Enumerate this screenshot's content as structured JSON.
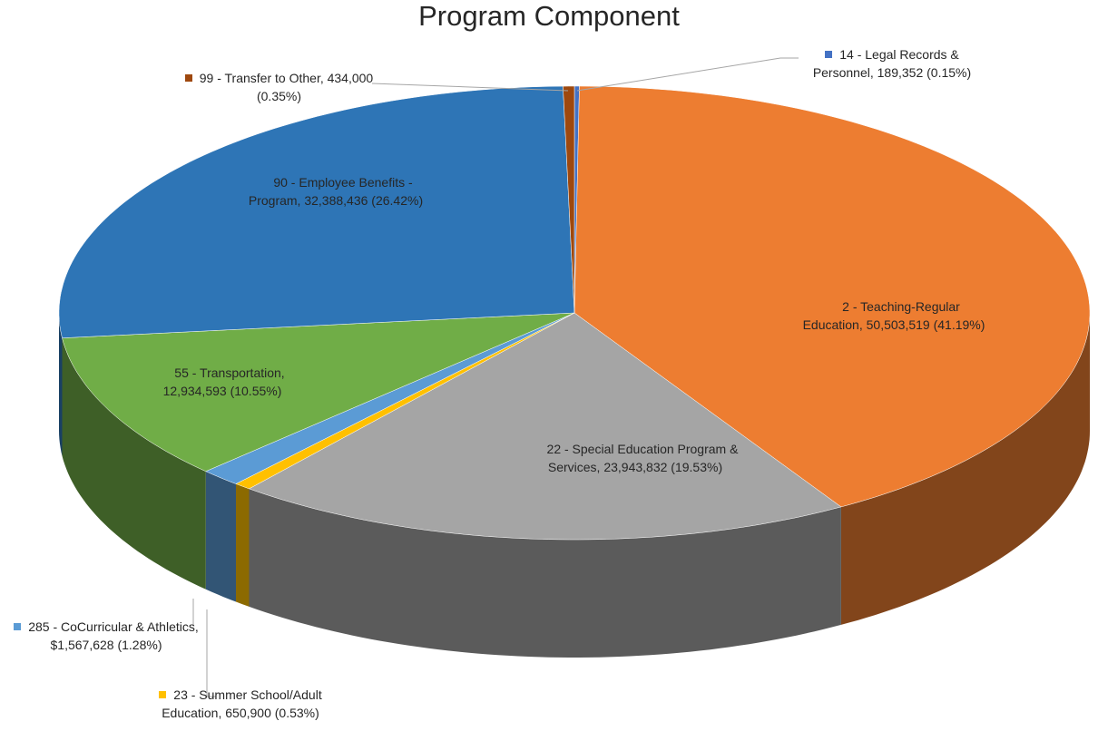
{
  "chart_data": {
    "type": "pie3d",
    "title": "Program Component",
    "categories": [
      "14 - Legal Records & Personnel,",
      "2 - Teaching-Regular Education,",
      "22 - Special Education Program & Services,",
      "23 - Summer School/Adult Education,",
      "285 - CoCurricular & Athletics,",
      "55 - Transportation,",
      "90 - Employee Benefits - Program,",
      "99 - Transfer to Other,"
    ],
    "values": [
      189352,
      50503519,
      23943832,
      650900,
      1567628,
      12934593,
      32388436,
      434000
    ],
    "value_labels": [
      "189,352 (0.15%)",
      "50,503,519 (41.19%)",
      "23,943,832 (19.53%)",
      "650,900 (0.53%)",
      "$1,567,628 (1.28%)",
      "12,934,593 (10.55%)",
      "32,388,436 (26.42%)",
      "434,000 (0.35%)"
    ],
    "colors": [
      "#4472c4",
      "#ed7d31",
      "#a5a5a5",
      "#ffc000",
      "#5b9bd5",
      "#70ad47",
      "#2e75b6",
      "#9e480e"
    ]
  }
}
